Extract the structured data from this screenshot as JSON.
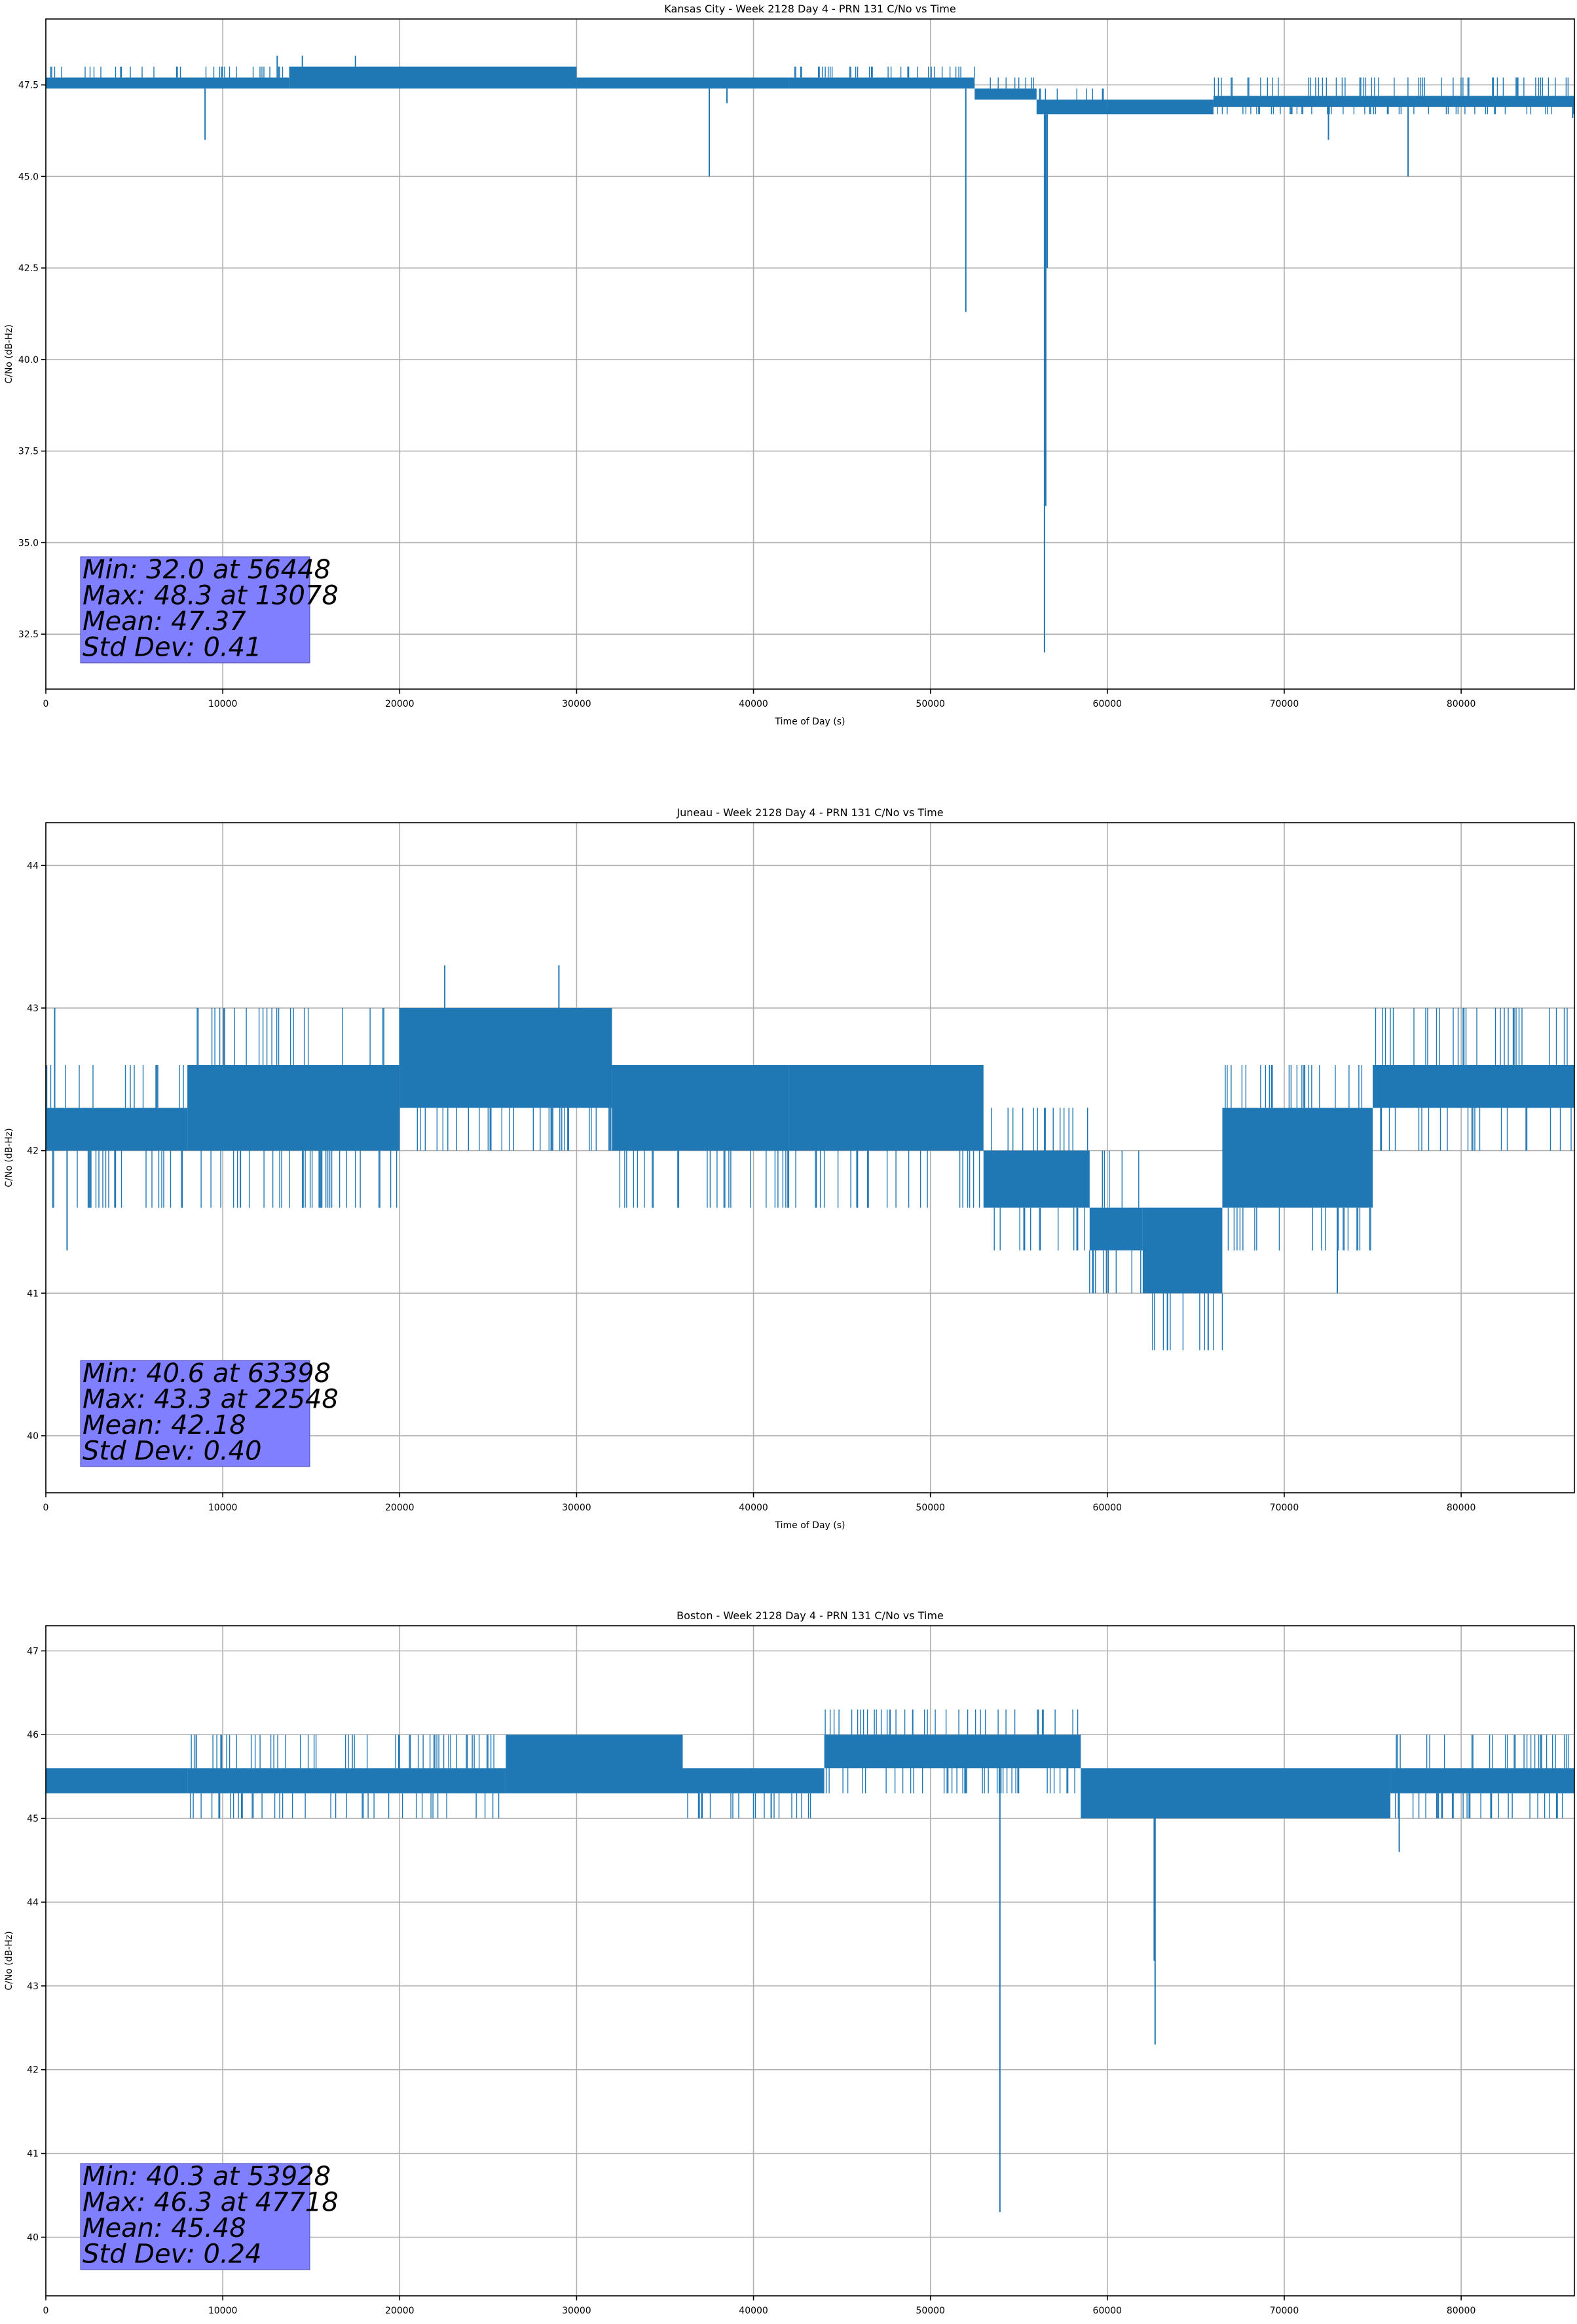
{
  "chart_data": [
    {
      "type": "line",
      "title": "Kansas City - Week 2128 Day 4 - PRN 131 C/No vs Time",
      "xlabel": "Time of Day (s)",
      "ylabel": "C/No (dB-Hz)",
      "xlim": [
        0,
        86400
      ],
      "ylim": [
        31.0,
        49.3
      ],
      "xticks": [
        0,
        10000,
        20000,
        30000,
        40000,
        50000,
        60000,
        70000,
        80000
      ],
      "yticks": [
        32.5,
        35.0,
        37.5,
        40.0,
        42.5,
        45.0,
        47.5
      ],
      "ytick_labels": [
        "32.5",
        "35.0",
        "37.5",
        "40.0",
        "42.5",
        "45.0",
        "47.5"
      ],
      "grid": true,
      "line_color": "#1f77b4",
      "stats_box_color": "#7f7fff",
      "stats": [
        "Min: 32.0 at 56448",
        "Max: 48.3 at 13078",
        "Mean: 47.37",
        "Std Dev: 0.41"
      ],
      "band_segments": [
        {
          "x0": 0,
          "x1": 13800,
          "lo": 47.4,
          "hi": 48.0,
          "dense": [
            47.4,
            47.7
          ]
        },
        {
          "x0": 13800,
          "x1": 30000,
          "lo": 47.4,
          "hi": 48.0,
          "dense": [
            47.4,
            48.0
          ]
        },
        {
          "x0": 30000,
          "x1": 42000,
          "lo": 47.4,
          "hi": 47.7,
          "dense": [
            47.4,
            47.7
          ]
        },
        {
          "x0": 42000,
          "x1": 52500,
          "lo": 47.4,
          "hi": 48.0,
          "dense": [
            47.4,
            47.7
          ]
        },
        {
          "x0": 52500,
          "x1": 56000,
          "lo": 47.1,
          "hi": 47.7,
          "dense": [
            47.1,
            47.4
          ]
        },
        {
          "x0": 56000,
          "x1": 60000,
          "lo": 46.7,
          "hi": 47.4,
          "dense": [
            46.7,
            47.1
          ]
        },
        {
          "x0": 60000,
          "x1": 66000,
          "lo": 46.7,
          "hi": 47.1,
          "dense": [
            46.7,
            47.1
          ]
        },
        {
          "x0": 66000,
          "x1": 86400,
          "lo": 46.7,
          "hi": 47.7,
          "dense": [
            46.9,
            47.2
          ]
        }
      ],
      "dips": [
        {
          "x": 9000,
          "y": 46.0
        },
        {
          "x": 37500,
          "y": 45.0
        },
        {
          "x": 38500,
          "y": 47.0
        },
        {
          "x": 52000,
          "y": 41.3
        },
        {
          "x": 56448,
          "y": 32.0
        },
        {
          "x": 56600,
          "y": 42.5
        },
        {
          "x": 56520,
          "y": 36.0
        },
        {
          "x": 72500,
          "y": 46.0
        },
        {
          "x": 77000,
          "y": 45.0
        },
        {
          "x": 86300,
          "y": 46.6
        }
      ],
      "peaks": [
        {
          "x": 13078,
          "y": 48.3
        },
        {
          "x": 17500,
          "y": 48.3
        },
        {
          "x": 14500,
          "y": 48.3
        }
      ]
    },
    {
      "type": "line",
      "title": "Juneau - Week 2128 Day 4 - PRN 131 C/No vs Time",
      "xlabel": "Time of Day (s)",
      "ylabel": "C/No (dB-Hz)",
      "xlim": [
        0,
        86400
      ],
      "ylim": [
        39.6,
        44.3
      ],
      "xticks": [
        0,
        10000,
        20000,
        30000,
        40000,
        50000,
        60000,
        70000,
        80000
      ],
      "yticks": [
        40,
        41,
        42,
        43,
        44
      ],
      "ytick_labels": [
        "40",
        "41",
        "42",
        "43",
        "44"
      ],
      "grid": true,
      "line_color": "#1f77b4",
      "stats_box_color": "#7f7fff",
      "stats": [
        "Min: 40.6 at 63398",
        "Max: 43.3 at 22548",
        "Mean: 42.18",
        "Std Dev: 0.40"
      ],
      "band_segments": [
        {
          "x0": 0,
          "x1": 8000,
          "lo": 41.6,
          "hi": 42.6,
          "dense": [
            42.0,
            42.3
          ]
        },
        {
          "x0": 8000,
          "x1": 20000,
          "lo": 41.6,
          "hi": 43.0,
          "dense": [
            42.0,
            42.6
          ]
        },
        {
          "x0": 20000,
          "x1": 32000,
          "lo": 42.0,
          "hi": 43.0,
          "dense": [
            42.3,
            43.0
          ]
        },
        {
          "x0": 32000,
          "x1": 42000,
          "lo": 41.6,
          "hi": 42.6,
          "dense": [
            42.0,
            42.6
          ]
        },
        {
          "x0": 42000,
          "x1": 53000,
          "lo": 41.6,
          "hi": 42.6,
          "dense": [
            42.0,
            42.6
          ]
        },
        {
          "x0": 53000,
          "x1": 59000,
          "lo": 41.3,
          "hi": 42.3,
          "dense": [
            41.6,
            42.0
          ]
        },
        {
          "x0": 59000,
          "x1": 62000,
          "lo": 41.0,
          "hi": 42.0,
          "dense": [
            41.3,
            41.6
          ]
        },
        {
          "x0": 62000,
          "x1": 66500,
          "lo": 40.6,
          "hi": 41.6,
          "dense": [
            41.0,
            41.6
          ]
        },
        {
          "x0": 66500,
          "x1": 75000,
          "lo": 41.3,
          "hi": 42.6,
          "dense": [
            41.6,
            42.3
          ]
        },
        {
          "x0": 75000,
          "x1": 86400,
          "lo": 42.0,
          "hi": 43.0,
          "dense": [
            42.3,
            42.6
          ]
        }
      ],
      "dips": [
        {
          "x": 1200,
          "y": 41.3
        },
        {
          "x": 11000,
          "y": 41.6
        },
        {
          "x": 63398,
          "y": 40.6
        },
        {
          "x": 65700,
          "y": 40.6
        },
        {
          "x": 73000,
          "y": 41.0
        }
      ],
      "peaks": [
        {
          "x": 500,
          "y": 43.0
        },
        {
          "x": 22548,
          "y": 43.3
        },
        {
          "x": 29000,
          "y": 43.3
        }
      ]
    },
    {
      "type": "line",
      "title": "Boston - Week 2128 Day 4 - PRN 131 C/No vs Time",
      "xlabel": "Time of Day (s)",
      "ylabel": "C/No (dB-Hz)",
      "xlim": [
        0,
        86400
      ],
      "ylim": [
        39.3,
        47.3
      ],
      "xticks": [
        0,
        10000,
        20000,
        30000,
        40000,
        50000,
        60000,
        70000,
        80000
      ],
      "yticks": [
        40,
        41,
        42,
        43,
        44,
        45,
        46,
        47
      ],
      "ytick_labels": [
        "40",
        "41",
        "42",
        "43",
        "44",
        "45",
        "46",
        "47"
      ],
      "grid": true,
      "line_color": "#1f77b4",
      "stats_box_color": "#7f7fff",
      "stats": [
        "Min: 40.3 at 53928",
        "Max: 46.3 at 47718",
        "Mean: 45.48",
        "Std Dev: 0.24"
      ],
      "band_segments": [
        {
          "x0": 0,
          "x1": 8000,
          "lo": 45.3,
          "hi": 45.6,
          "dense": [
            45.3,
            45.6
          ]
        },
        {
          "x0": 8000,
          "x1": 26000,
          "lo": 45.0,
          "hi": 46.0,
          "dense": [
            45.3,
            45.6
          ]
        },
        {
          "x0": 26000,
          "x1": 36000,
          "lo": 45.3,
          "hi": 46.0,
          "dense": [
            45.3,
            46.0
          ]
        },
        {
          "x0": 36000,
          "x1": 44000,
          "lo": 45.0,
          "hi": 45.6,
          "dense": [
            45.3,
            45.6
          ]
        },
        {
          "x0": 44000,
          "x1": 58500,
          "lo": 45.3,
          "hi": 46.3,
          "dense": [
            45.6,
            46.0
          ]
        },
        {
          "x0": 58500,
          "x1": 76000,
          "lo": 45.0,
          "hi": 45.6,
          "dense": [
            45.0,
            45.6
          ]
        },
        {
          "x0": 76000,
          "x1": 86400,
          "lo": 45.0,
          "hi": 46.0,
          "dense": [
            45.3,
            45.6
          ]
        }
      ],
      "dips": [
        {
          "x": 53928,
          "y": 40.3
        },
        {
          "x": 62700,
          "y": 42.3
        },
        {
          "x": 62650,
          "y": 43.3
        },
        {
          "x": 76500,
          "y": 44.6
        },
        {
          "x": 41000,
          "y": 45.0
        }
      ],
      "peaks": [
        {
          "x": 47718,
          "y": 46.3
        },
        {
          "x": 49000,
          "y": 46.3
        },
        {
          "x": 8500,
          "y": 46.0
        }
      ]
    }
  ]
}
